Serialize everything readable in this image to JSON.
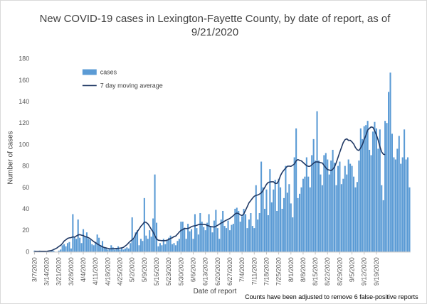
{
  "chart_data": {
    "type": "bar",
    "title_lines": [
      "New COVID-19 cases in Lexington-Fayette County, by date of report, as of",
      "9/21/2020"
    ],
    "xlabel": "Date of report",
    "ylabel": "Number of cases",
    "ylim": [
      0,
      180
    ],
    "yticks": [
      0,
      20,
      40,
      60,
      80,
      100,
      120,
      140,
      160,
      180
    ],
    "grid": false,
    "legend_position": "top-left",
    "start_date": "2020-03-07",
    "xtick_labels": [
      "3/7/2020",
      "3/14/2020",
      "3/21/2020",
      "3/28/2020",
      "4/4/2020",
      "4/11/2020",
      "4/18/2020",
      "4/25/2020",
      "5/2/2020",
      "5/9/2020",
      "5/16/2020",
      "5/23/2020",
      "5/30/2020",
      "6/6/2020",
      "6/13/2020",
      "6/20/2020",
      "6/27/2020",
      "7/4/2020",
      "7/11/2020",
      "7/18/2020",
      "7/25/2020",
      "8/1/2020",
      "8/8/2020",
      "8/15/2020",
      "8/22/2020",
      "8/29/2020",
      "9/5/2020",
      "9/12/2020",
      "9/19/2020"
    ],
    "series": [
      {
        "name": "cases",
        "kind": "bar",
        "color": "#5b9bd5",
        "values": [
          1,
          0,
          0,
          1,
          0,
          0,
          0,
          0,
          1,
          1,
          1,
          1,
          0,
          0,
          1,
          2,
          6,
          7,
          5,
          8,
          9,
          3,
          35,
          14,
          12,
          30,
          13,
          8,
          21,
          14,
          18,
          12,
          11,
          7,
          6,
          9,
          16,
          13,
          6,
          10,
          4,
          3,
          2,
          3,
          6,
          4,
          2,
          3,
          5,
          2,
          4,
          2,
          3,
          4,
          3,
          8,
          32,
          12,
          18,
          20,
          6,
          12,
          10,
          50,
          15,
          12,
          20,
          14,
          31,
          72,
          27,
          5,
          8,
          6,
          12,
          7,
          11,
          13,
          15,
          7,
          8,
          6,
          10,
          12,
          28,
          28,
          22,
          12,
          26,
          19,
          21,
          12,
          35,
          22,
          16,
          36,
          28,
          23,
          20,
          27,
          35,
          24,
          18,
          29,
          39,
          22,
          12,
          30,
          38,
          24,
          22,
          29,
          20,
          25,
          26,
          40,
          41,
          38,
          28,
          33,
          40,
          35,
          22,
          30,
          36,
          24,
          22,
          62,
          30,
          36,
          84,
          60,
          40,
          58,
          34,
          77,
          46,
          58,
          67,
          38,
          68,
          60,
          40,
          50,
          80,
          55,
          63,
          45,
          32,
          88,
          115,
          50,
          54,
          60,
          68,
          70,
          88,
          70,
          60,
          90,
          105,
          85,
          131,
          85,
          72,
          62,
          90,
          92,
          86,
          72,
          85,
          95,
          83,
          62,
          80,
          84,
          63,
          68,
          80,
          72,
          86,
          82,
          80,
          70,
          60,
          65,
          85,
          115,
          105,
          117,
          118,
          122,
          95,
          90,
          112,
          121,
          115,
          96,
          114,
          62,
          48,
          122,
          120,
          149,
          167,
          110,
          88,
          86,
          96,
          108,
          82,
          88,
          114,
          86,
          88,
          60
        ]
      },
      {
        "name": "7 day moving average",
        "kind": "line",
        "color": "#1f3864",
        "values": [
          0.4,
          0.3,
          0.3,
          0.3,
          0.4,
          0.4,
          0.4,
          0.3,
          0.6,
          0.9,
          1.2,
          2.0,
          2.7,
          3.6,
          4.9,
          5.9,
          7.6,
          9.9,
          11.1,
          12.4,
          12.9,
          13.1,
          13.8,
          13.6,
          14.6,
          15.6,
          15.9,
          15.4,
          15.0,
          14.1,
          13.7,
          13.0,
          12.0,
          10.7,
          9.4,
          8.4,
          7.3,
          6.3,
          5.4,
          4.5,
          3.9,
          3.5,
          3.1,
          2.8,
          2.7,
          2.8,
          2.9,
          3.0,
          3.1,
          3.3,
          3.5,
          4.0,
          5.3,
          6.5,
          8.3,
          9.9,
          11.1,
          12.7,
          16.1,
          18.8,
          21.1,
          23.7,
          25.4,
          27.7,
          27.3,
          26.0,
          23.6,
          20.8,
          18.5,
          15.1,
          11.8,
          10.7,
          10.5,
          10.3,
          10.3,
          10.3,
          10.7,
          11.3,
          12.4,
          13.0,
          14.1,
          14.6,
          16.4,
          18.3,
          19.9,
          20.5,
          21.8,
          21.5,
          21.7,
          22.3,
          23.4,
          23.9,
          24.1,
          24.6,
          25.2,
          25.6,
          25.5,
          25.5,
          25.3,
          24.5,
          24.0,
          23.3,
          23.2,
          23.0,
          23.7,
          24.6,
          25.6,
          26.7,
          27.4,
          28.5,
          29.4,
          30.2,
          31.0,
          32.3,
          33.6,
          35.2,
          36.0,
          35.6,
          34.3,
          33.7,
          35.2,
          38.6,
          42.1,
          45.7,
          47.7,
          49.9,
          51.7,
          52.5,
          52.9,
          53.7,
          54.9,
          57.1,
          59.9,
          62.8,
          64.6,
          65.0,
          65.2,
          65.2,
          63.6,
          63.7,
          66.2,
          70.9,
          73.9,
          76.1,
          78.0,
          79.7,
          79.8,
          79.6,
          80.6,
          81.8,
          84.8,
          85.9,
          85.2,
          84.7,
          83.2,
          81.7,
          80.2,
          79.6,
          79.7,
          81.0,
          82.6,
          83.6,
          83.8,
          83.5,
          83.0,
          82.7,
          80.5,
          78.3,
          76.5,
          76.2,
          75.6,
          76.9,
          78.9,
          83.1,
          87.9,
          92.7,
          97.3,
          101.8,
          104.4,
          105.3,
          103.8,
          103.9,
          102.4,
          100.4,
          97.1,
          95.0,
          94.4,
          96.8,
          100.0,
          104.6,
          108.6,
          113.4,
          115.0,
          116.4,
          115.9,
          112.8,
          109.0,
          104.1,
          98.0,
          93.1,
          90.9,
          90.5
        ]
      }
    ]
  },
  "note": "Counts have been adjusted to remove 6 false-positive reports"
}
